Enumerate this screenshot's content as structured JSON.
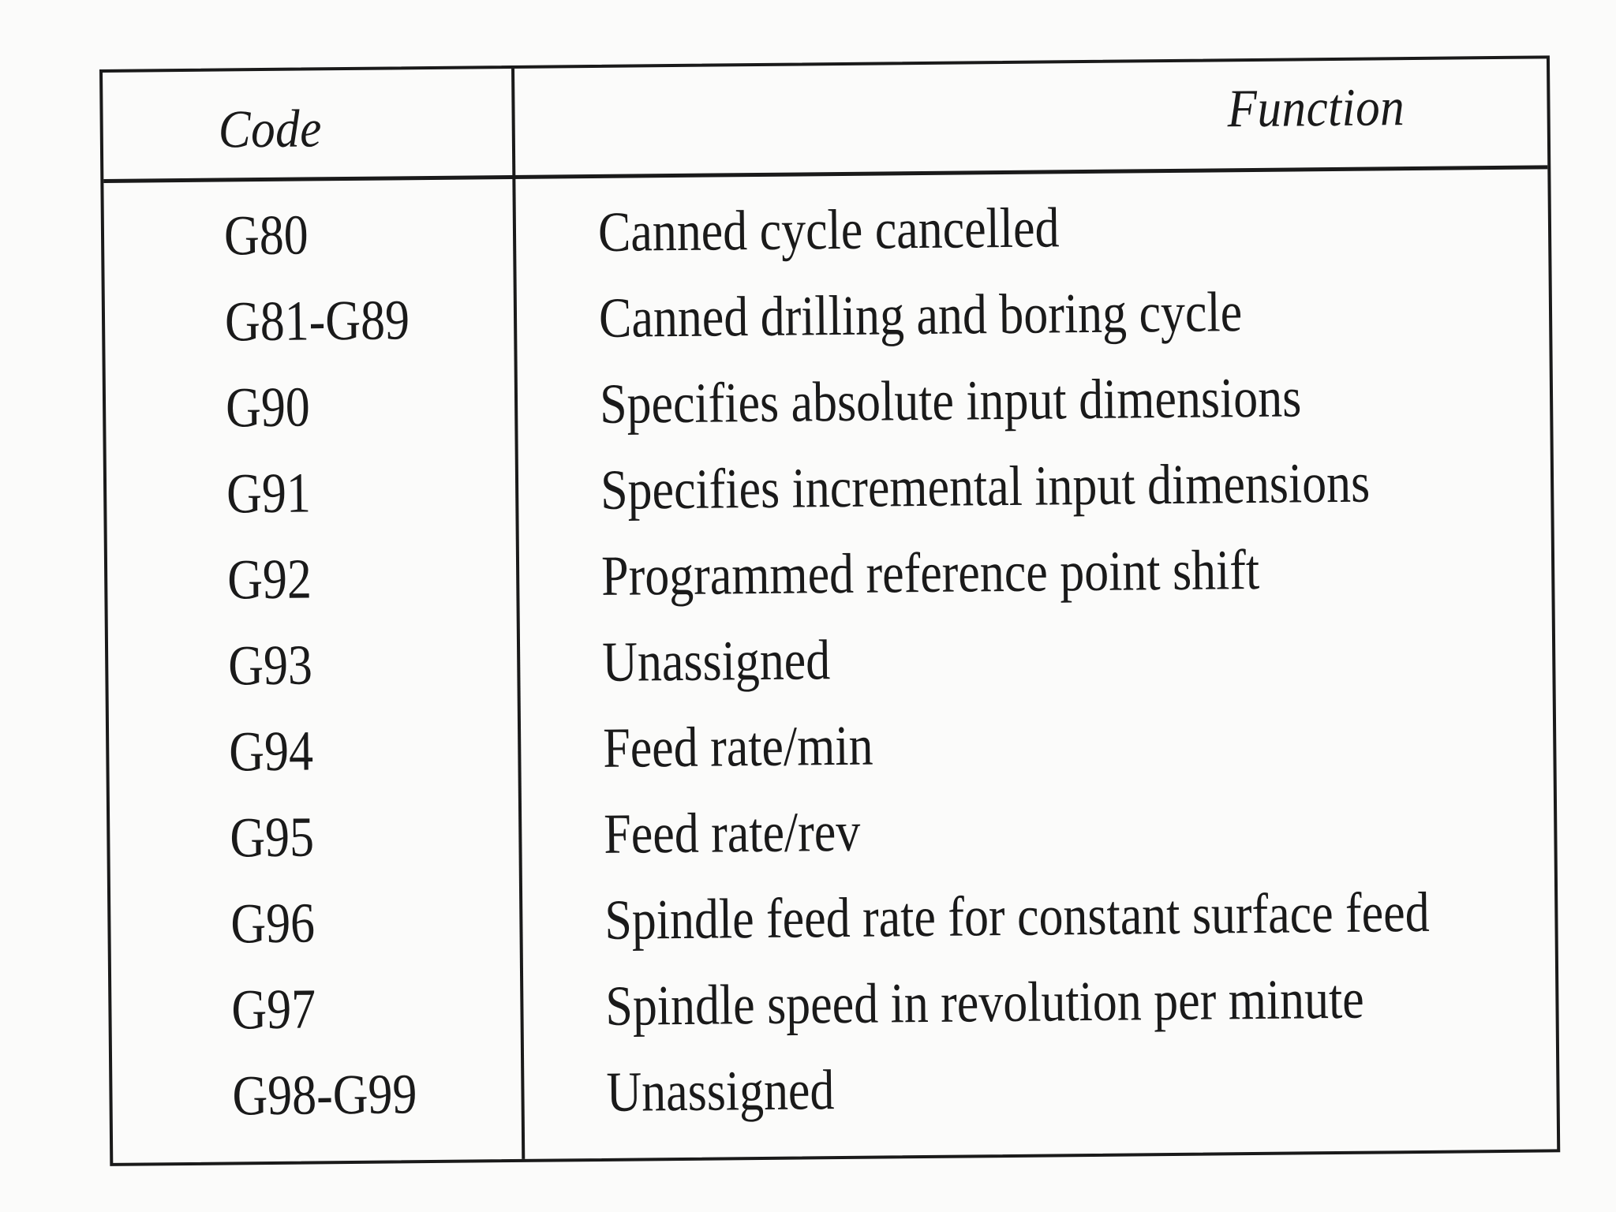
{
  "table": {
    "header": {
      "code": "Code",
      "function": "Function"
    },
    "rows": [
      {
        "code": "G80",
        "function": "Canned cycle cancelled"
      },
      {
        "code": "G81-G89",
        "function": "Canned drilling and boring cycle"
      },
      {
        "code": "G90",
        "function": "Specifies absolute input dimensions"
      },
      {
        "code": "G91",
        "function": "Specifies incremental input dimensions"
      },
      {
        "code": "G92",
        "function": "Programmed reference point shift"
      },
      {
        "code": "G93",
        "function": "Unassigned"
      },
      {
        "code": "G94",
        "function": "Feed rate/min"
      },
      {
        "code": "G95",
        "function": "Feed rate/rev"
      },
      {
        "code": "G96",
        "function": "Spindle feed rate for constant surface feed"
      },
      {
        "code": "G97",
        "function": "Spindle speed in revolution per minute"
      },
      {
        "code": "G98-G99",
        "function": "Unassigned"
      }
    ]
  }
}
